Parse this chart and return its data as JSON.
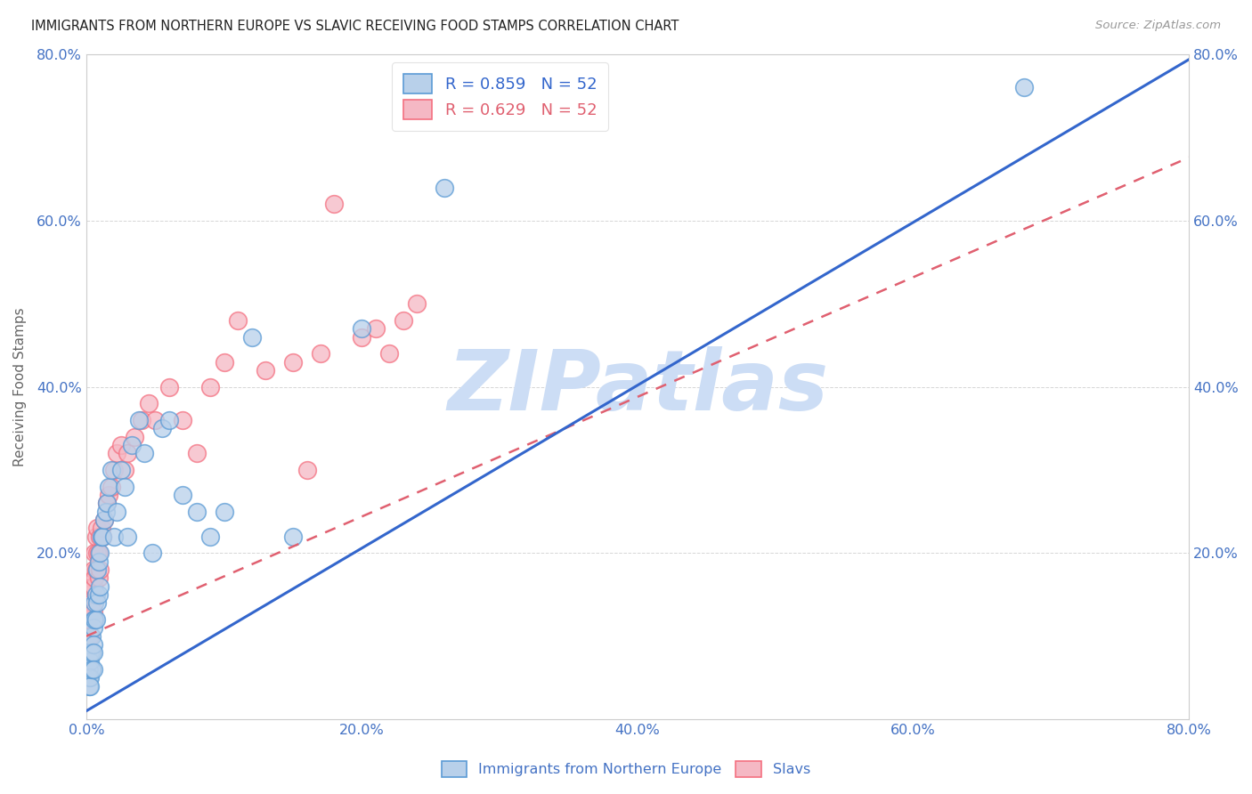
{
  "title": "IMMIGRANTS FROM NORTHERN EUROPE VS SLAVIC RECEIVING FOOD STAMPS CORRELATION CHART",
  "source": "Source: ZipAtlas.com",
  "ylabel": "Receiving Food Stamps",
  "xlim": [
    0.0,
    0.8
  ],
  "ylim": [
    0.0,
    0.8
  ],
  "xticks": [
    0.0,
    0.2,
    0.4,
    0.6,
    0.8
  ],
  "yticks": [
    0.2,
    0.4,
    0.6,
    0.8
  ],
  "xticklabels": [
    "0.0%",
    "20.0%",
    "40.0%",
    "60.0%",
    "80.0%"
  ],
  "yticklabels": [
    "20.0%",
    "40.0%",
    "60.0%",
    "80.0%"
  ],
  "right_yticks": [
    0.2,
    0.4,
    0.6,
    0.8
  ],
  "right_yticklabels": [
    "20.0%",
    "40.0%",
    "60.0%",
    "80.0%"
  ],
  "legend1_label": "R = 0.859   N = 52",
  "legend2_label": "R = 0.629   N = 52",
  "legend1_color": "#b8d0ea",
  "legend2_color": "#f5b8c4",
  "blue_edge_color": "#5b9bd5",
  "pink_edge_color": "#f47080",
  "blue_line_color": "#3366cc",
  "pink_line_color": "#e06070",
  "watermark": "ZIPatlas",
  "watermark_color": "#ccddf5",
  "blue_line_slope": 0.98,
  "blue_line_intercept": 0.01,
  "pink_line_slope": 0.72,
  "pink_line_intercept": 0.1,
  "blue_scatter_x": [
    0.002,
    0.002,
    0.002,
    0.003,
    0.003,
    0.003,
    0.003,
    0.004,
    0.004,
    0.004,
    0.005,
    0.005,
    0.005,
    0.005,
    0.005,
    0.006,
    0.006,
    0.007,
    0.007,
    0.008,
    0.008,
    0.009,
    0.009,
    0.01,
    0.01,
    0.011,
    0.012,
    0.013,
    0.014,
    0.015,
    0.016,
    0.018,
    0.02,
    0.022,
    0.025,
    0.028,
    0.03,
    0.033,
    0.038,
    0.042,
    0.048,
    0.055,
    0.06,
    0.07,
    0.08,
    0.09,
    0.1,
    0.12,
    0.15,
    0.2,
    0.26,
    0.68
  ],
  "blue_scatter_y": [
    0.06,
    0.05,
    0.04,
    0.08,
    0.07,
    0.05,
    0.04,
    0.1,
    0.08,
    0.06,
    0.12,
    0.11,
    0.09,
    0.08,
    0.06,
    0.14,
    0.12,
    0.15,
    0.12,
    0.18,
    0.14,
    0.19,
    0.15,
    0.2,
    0.16,
    0.22,
    0.22,
    0.24,
    0.25,
    0.26,
    0.28,
    0.3,
    0.22,
    0.25,
    0.3,
    0.28,
    0.22,
    0.33,
    0.36,
    0.32,
    0.2,
    0.35,
    0.36,
    0.27,
    0.25,
    0.22,
    0.25,
    0.46,
    0.22,
    0.47,
    0.64,
    0.76
  ],
  "pink_scatter_x": [
    0.001,
    0.002,
    0.002,
    0.003,
    0.003,
    0.003,
    0.004,
    0.004,
    0.005,
    0.005,
    0.005,
    0.006,
    0.006,
    0.007,
    0.007,
    0.008,
    0.008,
    0.009,
    0.009,
    0.01,
    0.01,
    0.011,
    0.012,
    0.013,
    0.015,
    0.016,
    0.018,
    0.02,
    0.022,
    0.025,
    0.028,
    0.03,
    0.035,
    0.04,
    0.045,
    0.05,
    0.06,
    0.07,
    0.08,
    0.09,
    0.1,
    0.11,
    0.13,
    0.15,
    0.16,
    0.17,
    0.18,
    0.2,
    0.21,
    0.22,
    0.23,
    0.24
  ],
  "pink_scatter_y": [
    0.1,
    0.12,
    0.1,
    0.15,
    0.13,
    0.1,
    0.16,
    0.14,
    0.18,
    0.16,
    0.13,
    0.2,
    0.17,
    0.22,
    0.18,
    0.23,
    0.2,
    0.2,
    0.17,
    0.22,
    0.18,
    0.23,
    0.22,
    0.24,
    0.26,
    0.27,
    0.28,
    0.3,
    0.32,
    0.33,
    0.3,
    0.32,
    0.34,
    0.36,
    0.38,
    0.36,
    0.4,
    0.36,
    0.32,
    0.4,
    0.43,
    0.48,
    0.42,
    0.43,
    0.3,
    0.44,
    0.62,
    0.46,
    0.47,
    0.44,
    0.48,
    0.5
  ],
  "background_color": "#ffffff",
  "grid_color": "#cccccc",
  "scatter_size": 200
}
